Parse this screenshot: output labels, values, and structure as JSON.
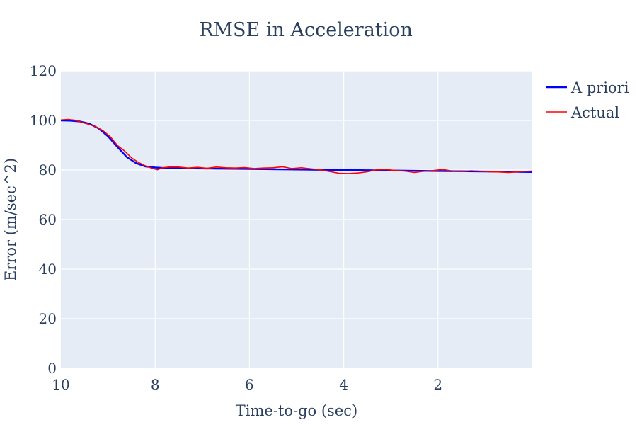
{
  "chart_data": {
    "type": "line",
    "title": "RMSE in Acceleration",
    "xlabel": "Time-to-go (sec)",
    "ylabel": "Error (m/sec^2)",
    "xlim": [
      10,
      0
    ],
    "ylim": [
      0,
      120
    ],
    "x_reversed": true,
    "xticks": [
      10,
      8,
      6,
      4,
      2
    ],
    "yticks": [
      0,
      20,
      40,
      60,
      80,
      100,
      120
    ],
    "grid": true,
    "legend_position": "top-right outside",
    "plot_background": "#e5ecf6",
    "series": [
      {
        "name": "A priori",
        "color": "#0000ff",
        "x": [
          10,
          9.8,
          9.6,
          9.4,
          9.2,
          9.0,
          8.8,
          8.6,
          8.4,
          8.2,
          8.0,
          7.8,
          7.5,
          7,
          6,
          5,
          4,
          3,
          2,
          1,
          0
        ],
        "y": [
          100,
          99.9,
          99.6,
          98.7,
          96.8,
          93.6,
          89.3,
          85.2,
          82.7,
          81.4,
          81.0,
          80.8,
          80.7,
          80.6,
          80.4,
          80.2,
          80.0,
          79.8,
          79.6,
          79.4,
          79.2
        ]
      },
      {
        "name": "Actual",
        "color": "#ff0000",
        "x": [
          10,
          9.85,
          9.7,
          9.55,
          9.4,
          9.25,
          9.1,
          8.95,
          8.8,
          8.65,
          8.5,
          8.35,
          8.2,
          8.05,
          7.95,
          7.85,
          7.7,
          7.5,
          7.3,
          7.1,
          6.9,
          6.7,
          6.5,
          6.3,
          6.1,
          5.9,
          5.7,
          5.5,
          5.3,
          5.1,
          4.9,
          4.7,
          4.5,
          4.3,
          4.1,
          3.9,
          3.7,
          3.5,
          3.3,
          3.1,
          2.9,
          2.7,
          2.5,
          2.3,
          2.1,
          1.9,
          1.7,
          1.5,
          1.3,
          1.1,
          0.9,
          0.7,
          0.5,
          0.3,
          0.1,
          0
        ],
        "y": [
          100.2,
          100.4,
          100.1,
          99.2,
          98.4,
          97.4,
          95.8,
          93.4,
          89.9,
          87.7,
          84.9,
          83.0,
          81.6,
          80.6,
          80.1,
          80.9,
          81.2,
          81.2,
          80.8,
          81.1,
          80.7,
          81.2,
          80.9,
          80.8,
          81.0,
          80.6,
          80.8,
          80.9,
          81.3,
          80.6,
          80.9,
          80.5,
          80.1,
          79.4,
          78.7,
          78.6,
          78.8,
          79.3,
          80.1,
          80.2,
          79.8,
          79.6,
          79.0,
          79.5,
          79.8,
          80.2,
          79.6,
          79.4,
          79.7,
          79.5,
          79.3,
          79.2,
          79.0,
          79.3,
          79.5,
          79.6
        ]
      }
    ]
  }
}
